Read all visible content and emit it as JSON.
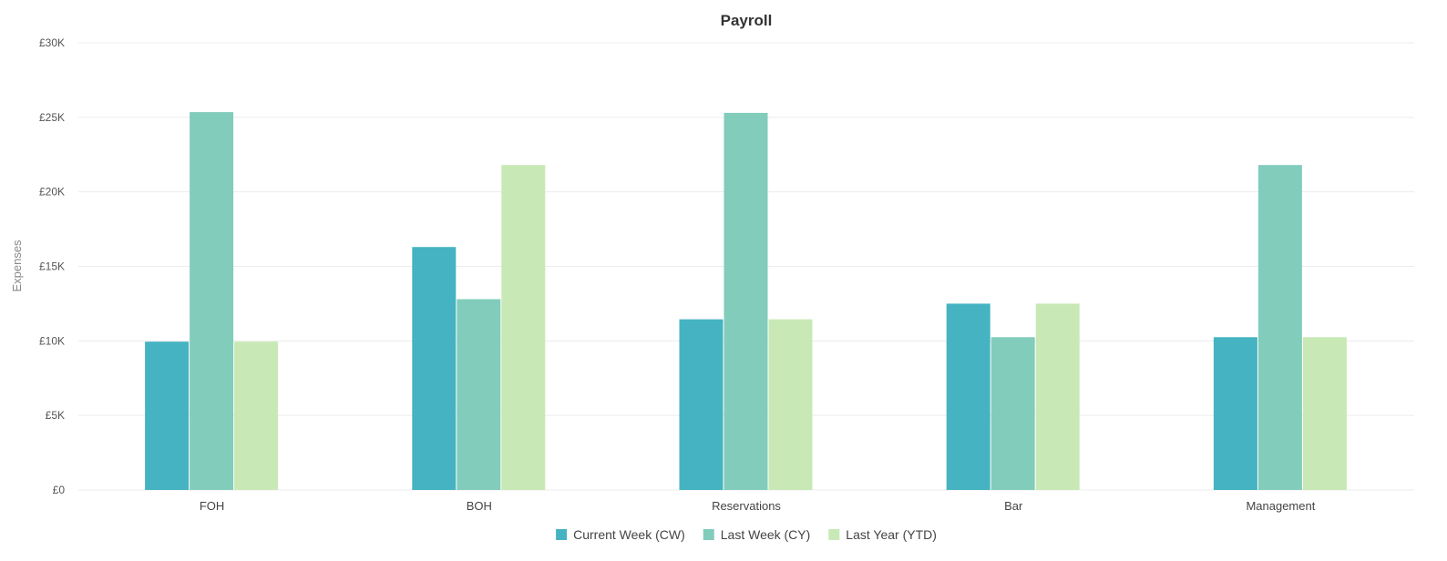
{
  "chart_data": {
    "type": "bar",
    "title": "Payroll",
    "xlabel": "",
    "ylabel": "Expenses",
    "ylim": [
      0,
      30000
    ],
    "yticks": [
      0,
      5000,
      10000,
      15000,
      20000,
      25000,
      30000
    ],
    "ytick_labels": [
      "£0",
      "£5K",
      "£10K",
      "£15K",
      "£20K",
      "£25K",
      "£30K"
    ],
    "categories": [
      "FOH",
      "BOH",
      "Reservations",
      "Bar",
      "Management"
    ],
    "series": [
      {
        "name": "Current Week (CW)",
        "color": "#45b3c2",
        "values": [
          9950,
          16300,
          11450,
          12500,
          10250
        ]
      },
      {
        "name": "Last Week (CY)",
        "color": "#82ccbb",
        "values": [
          25350,
          12800,
          25300,
          10250,
          21800
        ]
      },
      {
        "name": "Last Year (YTD)",
        "color": "#c8e9b5",
        "values": [
          9950,
          21800,
          11450,
          12500,
          10250
        ]
      }
    ],
    "grid": true,
    "legend_position": "bottom-center"
  }
}
